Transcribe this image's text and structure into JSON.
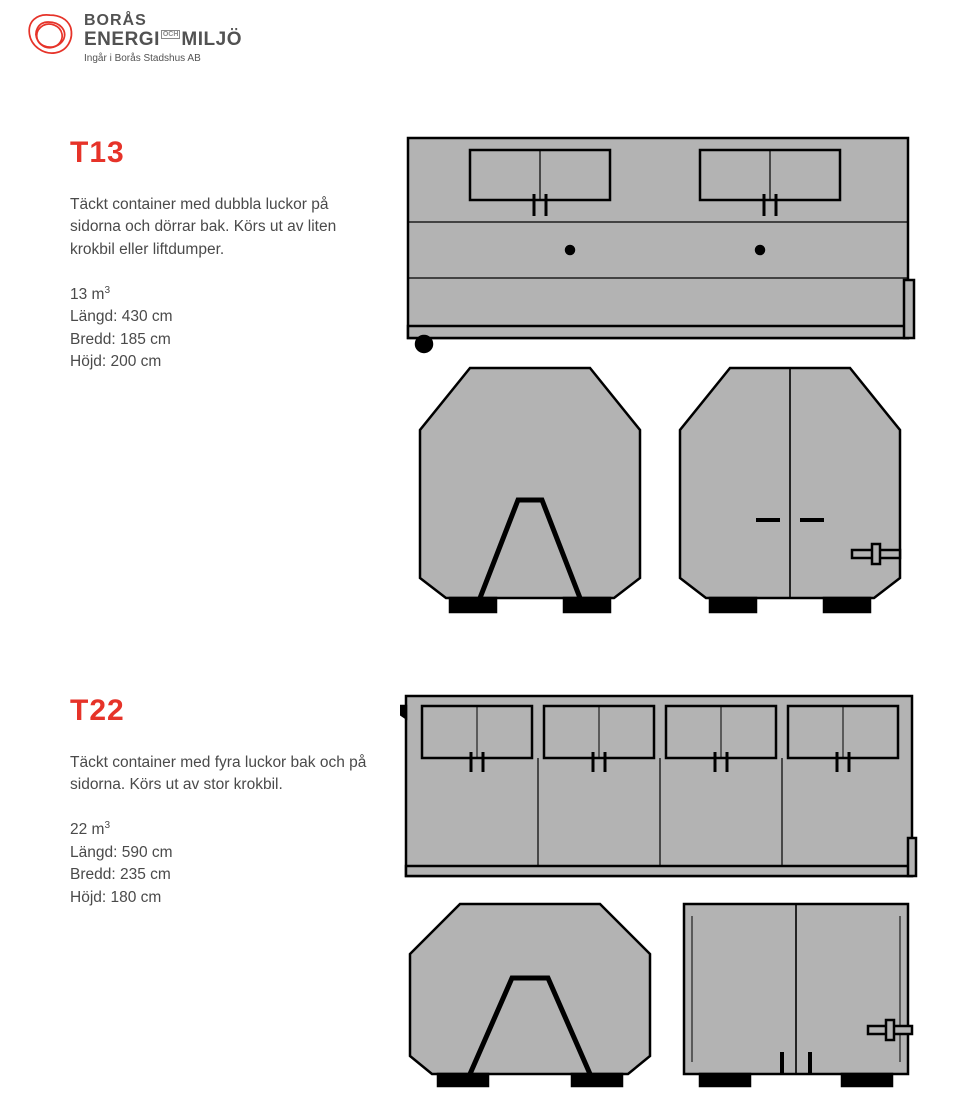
{
  "logo": {
    "line1": "BORÅS",
    "line2a": "ENERGI",
    "line2_mid": "OCH",
    "line2b": "MILJÖ",
    "sub": "Ingår i Borås Stadshus AB"
  },
  "colors": {
    "accent": "#e63329",
    "text": "#4a4a4a",
    "container_fill": "#b3b3b3",
    "container_stroke": "#000000",
    "logo_symbol_fill": "#ffffff",
    "logo_symbol_stroke": "#e63329"
  },
  "products": [
    {
      "code": "T13",
      "description": "Täckt container med dubbla luckor på sidorna och dörrar bak. Körs ut av liten krokbil eller liftdumper.",
      "volume": "13 m³",
      "length": "Längd: 430 cm",
      "width": "Bredd: 185 cm",
      "height": "Höjd: 200 cm"
    },
    {
      "code": "T22",
      "description": "Täckt container med fyra luckor bak och på sidorna. Körs ut av stor krokbil.",
      "volume": "22 m³",
      "length": "Längd: 590 cm",
      "width": "Bredd: 235 cm",
      "height": "Höjd: 180 cm"
    }
  ],
  "illustration_style": {
    "fill": "#b3b3b3",
    "stroke": "#000000",
    "stroke_width_main": 2.5,
    "stroke_width_thin": 1.2
  }
}
